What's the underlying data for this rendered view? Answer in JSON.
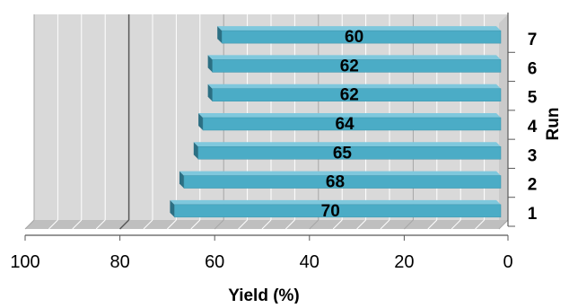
{
  "chart_data": {
    "type": "bar",
    "orientation": "horizontal",
    "three_d": true,
    "x_reversed": true,
    "title": "",
    "xlabel": "Yield (%)",
    "ylabel": "Run",
    "categories": [
      "1",
      "2",
      "3",
      "4",
      "5",
      "6",
      "7"
    ],
    "values": [
      70,
      68,
      65,
      64,
      62,
      62,
      60
    ],
    "xlim": [
      0,
      100
    ],
    "x_ticks": [
      "0",
      "20",
      "40",
      "60",
      "80",
      "100"
    ],
    "grid": true,
    "legend": "none",
    "colors": {
      "bar_face": "#4bacc6",
      "bar_top": "#7fc8dd",
      "bar_end": "#2c6f83",
      "wall": "#d9d9d9",
      "wall_side": "#bfbfbf",
      "grid_minor": "#ffffff",
      "grid_major": "#595959"
    }
  }
}
